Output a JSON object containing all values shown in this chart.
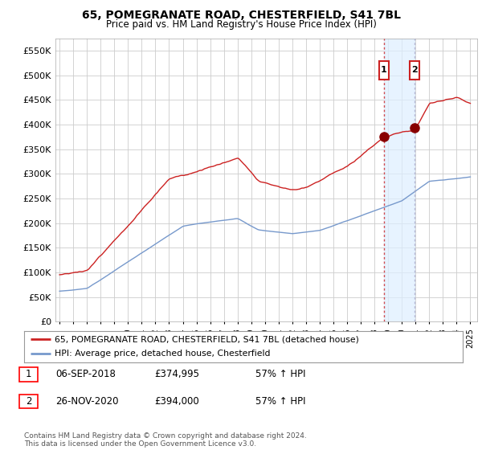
{
  "title": "65, POMEGRANATE ROAD, CHESTERFIELD, S41 7BL",
  "subtitle": "Price paid vs. HM Land Registry's House Price Index (HPI)",
  "hpi_color": "#7799cc",
  "price_color": "#cc2222",
  "bg_color": "#ffffff",
  "plot_bg": "#ffffff",
  "grid_color": "#cccccc",
  "span_color": "#ddeeff",
  "marker1_x": 2018.67,
  "marker1_y": 374995,
  "marker2_x": 2020.9,
  "marker2_y": 394000,
  "legend_line1": "65, POMEGRANATE ROAD, CHESTERFIELD, S41 7BL (detached house)",
  "legend_line2": "HPI: Average price, detached house, Chesterfield",
  "table_rows": [
    {
      "num": "1",
      "date": "06-SEP-2018",
      "price": "£374,995",
      "hpi": "57% ↑ HPI"
    },
    {
      "num": "2",
      "date": "26-NOV-2020",
      "price": "£394,000",
      "hpi": "57% ↑ HPI"
    }
  ],
  "footer": "Contains HM Land Registry data © Crown copyright and database right 2024.\nThis data is licensed under the Open Government Licence v3.0.",
  "ylim": [
    0,
    575000
  ],
  "yticks": [
    0,
    50000,
    100000,
    150000,
    200000,
    250000,
    300000,
    350000,
    400000,
    450000,
    500000,
    550000
  ],
  "xlim_start": 1994.7,
  "xlim_end": 2025.5
}
